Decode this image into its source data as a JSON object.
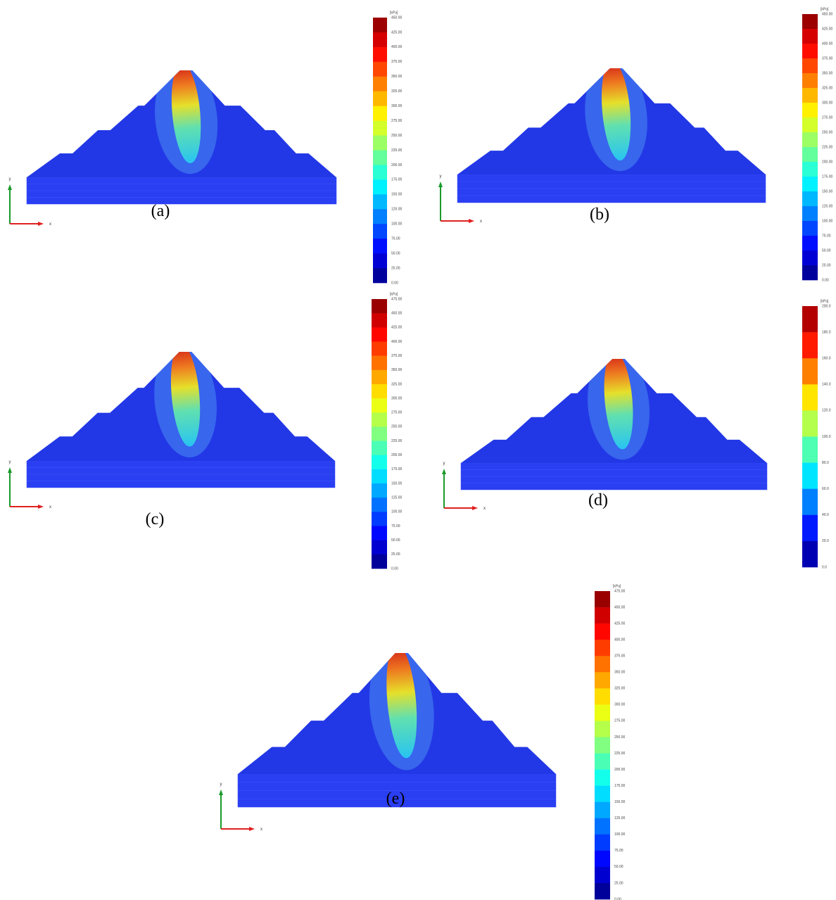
{
  "axis_labels": {
    "x": "x",
    "y": "y"
  },
  "panels": [
    {
      "caption": "(a)",
      "colorbar": {
        "unit": "[kPa]",
        "labels": [
          "450.00",
          "425.00",
          "400.00",
          "375.00",
          "350.00",
          "325.00",
          "300.00",
          "275.00",
          "250.00",
          "225.00",
          "200.00",
          "175.00",
          "150.00",
          "125.00",
          "100.00",
          "75.00",
          "50.00",
          "25.00",
          "0.00"
        ]
      }
    },
    {
      "caption": "(b)",
      "colorbar": {
        "unit": "[kPa]",
        "labels": [
          "450.00",
          "425.00",
          "400.00",
          "375.00",
          "350.00",
          "325.00",
          "300.00",
          "275.00",
          "250.00",
          "225.00",
          "200.00",
          "175.00",
          "150.00",
          "125.00",
          "100.00",
          "75.00",
          "50.00",
          "25.00",
          "0.00"
        ]
      }
    },
    {
      "caption": "(c)",
      "colorbar": {
        "unit": "[kPa]",
        "labels": [
          "475.00",
          "450.00",
          "425.00",
          "400.00",
          "375.00",
          "350.00",
          "325.00",
          "300.00",
          "275.00",
          "250.00",
          "225.00",
          "200.00",
          "175.00",
          "150.00",
          "125.00",
          "100.00",
          "75.00",
          "50.00",
          "25.00",
          "0.00"
        ]
      }
    },
    {
      "caption": "(d)",
      "colorbar": {
        "unit": "[kPa]",
        "labels": [
          "200.0",
          "180.0",
          "160.0",
          "140.0",
          "120.0",
          "100.0",
          "80.0",
          "60.0",
          "40.0",
          "20.0",
          "0.0"
        ]
      }
    },
    {
      "caption": "(e)",
      "colorbar": {
        "unit": "[kPa]",
        "labels": [
          "475.00",
          "450.00",
          "425.00",
          "400.00",
          "375.00",
          "350.00",
          "325.00",
          "300.00",
          "275.00",
          "250.00",
          "225.00",
          "200.00",
          "175.00",
          "150.00",
          "125.00",
          "100.00",
          "75.00",
          "50.00",
          "25.00",
          "0.00"
        ]
      }
    }
  ]
}
